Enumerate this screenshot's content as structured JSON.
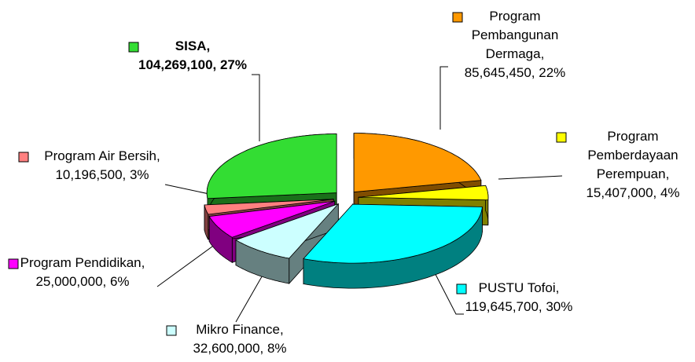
{
  "chart_data": {
    "type": "pie3d",
    "values": [
      85645450,
      15407000,
      119645700,
      32600000,
      25000000,
      10196500,
      104269100
    ],
    "value_labels": [
      "Program Pembangunan Dermaga, 85,645,450, 22%",
      "Program Pemberdayaan Perempuan, 15,407,000, 4%",
      "PUSTU Tofoi, 119,645,700, 30%",
      "Mikro Finance, 32,600,000, 8%",
      "Program Pendidikan, 25,000,000, 6%",
      "Program Air Bersih, 10,196,500, 3%",
      "SISA, 104,269,100, 27%"
    ],
    "colors": [
      "#ff9900",
      "#ffff00",
      "#00ffff",
      "#ccffff",
      "#ff00ff",
      "#ff8080",
      "#33dd33"
    ]
  }
}
